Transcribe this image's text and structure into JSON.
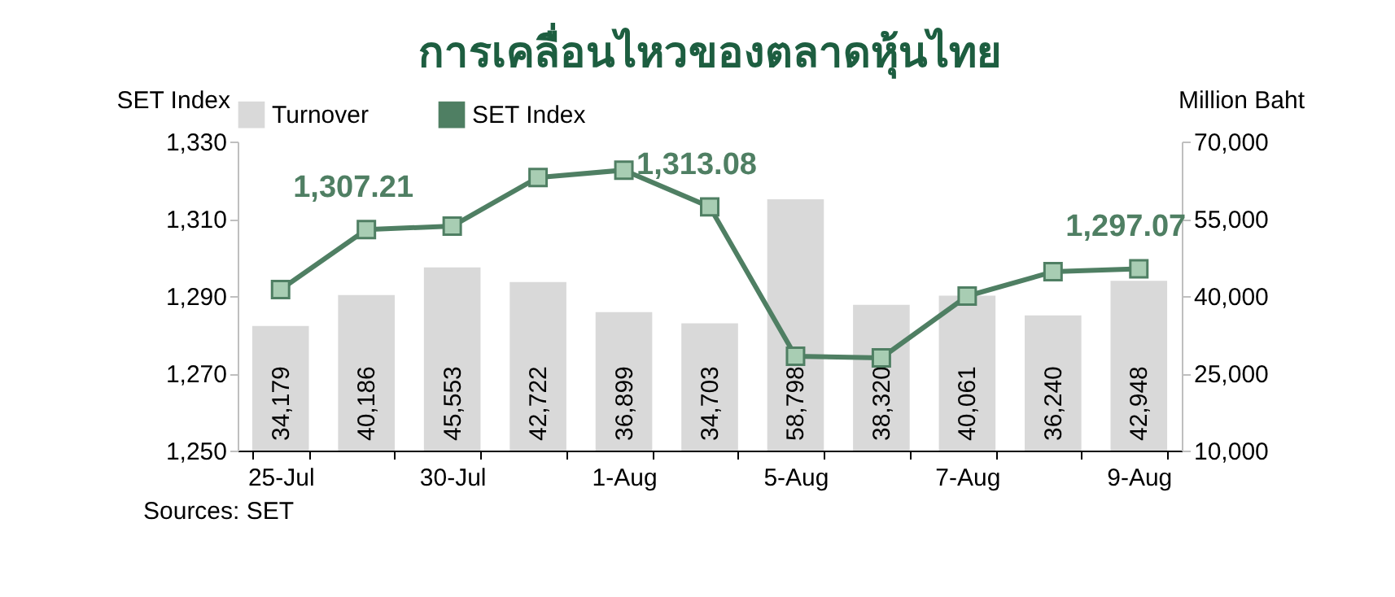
{
  "chart_data": {
    "type": "bar",
    "title": "การเคลื่อนไหวของตลาดหุ้นไทย",
    "ylabel": "SET Index",
    "y2label": "Million Baht",
    "categories": [
      "25-Jul",
      null,
      "30-Jul",
      null,
      "1-Aug",
      null,
      "5-Aug",
      null,
      "7-Aug",
      null,
      "9-Aug"
    ],
    "series": [
      {
        "name": "Turnover",
        "axis": "y2",
        "color": "#d9d9d9",
        "values": [
          34179,
          40186,
          45553,
          42722,
          36899,
          34703,
          58798,
          38320,
          40061,
          36240,
          42948
        ],
        "value_labels": [
          "34,179",
          "40,186",
          "45,553",
          "42,722",
          "36,899",
          "34,703",
          "58,798",
          "38,320",
          "40,061",
          "36,240",
          "42,948"
        ]
      },
      {
        "name": "SET Index",
        "type": "line",
        "color": "#4f7f63",
        "marker": "square",
        "values": [
          1291.7,
          1307.21,
          1308.1,
          1320.7,
          1322.6,
          1313.08,
          1274.4,
          1274.0,
          1290.0,
          1296.3,
          1297.07
        ],
        "value_labels": [
          null,
          "1,307.21",
          null,
          null,
          null,
          "1,313.08",
          null,
          null,
          null,
          null,
          "1,297.07"
        ]
      }
    ],
    "ylim": [
      1250,
      1330
    ],
    "yticks": [
      {
        "value": 1250,
        "label": "1,250"
      },
      {
        "value": 1270,
        "label": "1,270"
      },
      {
        "value": 1290,
        "label": "1,290"
      },
      {
        "value": 1310,
        "label": "1,310"
      },
      {
        "value": 1330,
        "label": "1,330"
      }
    ],
    "y2lim": [
      10000,
      70000
    ],
    "y2ticks": [
      {
        "value": 10000,
        "label": "10,000"
      },
      {
        "value": 25000,
        "label": "25,000"
      },
      {
        "value": 40000,
        "label": "40,000"
      },
      {
        "value": 55000,
        "label": "55,000"
      },
      {
        "value": 70000,
        "label": "70,000"
      }
    ],
    "legend": "top",
    "grid": false,
    "annotations": [
      "Sources: SET"
    ]
  }
}
